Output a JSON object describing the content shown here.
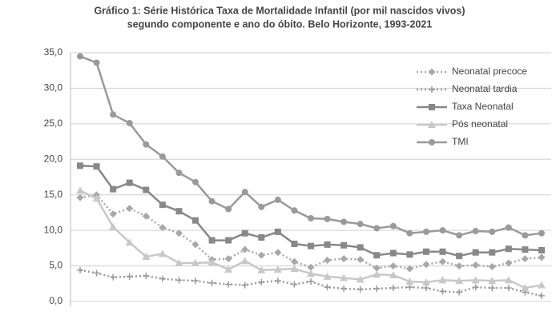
{
  "chart_data": {
    "type": "line",
    "title": [
      "Gráfico 1: Série Histórica Taxa de Mortalidade Infantil (por mil nascidos vivos)",
      "segundo componente e ano do óbito. Belo Horizonte, 1993-2021"
    ],
    "categories": [
      null,
      null,
      null,
      null,
      null,
      null,
      null,
      null,
      null,
      null,
      null,
      null,
      null,
      null,
      null,
      null,
      null,
      null,
      null,
      null,
      null,
      null,
      null,
      null,
      null,
      null,
      null,
      null,
      null
    ],
    "ylim": [
      0,
      35
    ],
    "yticks": [
      {
        "value": 0,
        "label": "0,0"
      },
      {
        "value": 5,
        "label": "5,0"
      },
      {
        "value": 10,
        "label": "10,0"
      },
      {
        "value": 15,
        "label": "15,0"
      },
      {
        "value": 20,
        "label": "20,0"
      },
      {
        "value": 25,
        "label": "25,0"
      },
      {
        "value": 30,
        "label": "30,0"
      },
      {
        "value": 35,
        "label": "35,0"
      }
    ],
    "grid": true,
    "legend": "top-right",
    "series": [
      {
        "name": "Neonatal precoce",
        "color": "#a8a8a8",
        "marker": "diamond",
        "dash": "dotted",
        "values": [
          14.6,
          15.0,
          12.3,
          13.1,
          12.0,
          10.4,
          9.6,
          8.0,
          5.9,
          6.0,
          7.3,
          6.5,
          6.9,
          5.6,
          4.8,
          5.8,
          6.0,
          5.9,
          4.7,
          5.0,
          4.6,
          5.2,
          5.6,
          5.0,
          5.1,
          4.9,
          5.4,
          6.0,
          6.2
        ]
      },
      {
        "name": "Neonatal tardia",
        "color": "#9a9a9a",
        "marker": "plus",
        "dash": "dotted",
        "values": [
          4.4,
          4.0,
          3.4,
          3.5,
          3.6,
          3.2,
          3.0,
          2.9,
          2.6,
          2.4,
          2.3,
          2.7,
          2.9,
          2.4,
          2.8,
          2.0,
          1.8,
          1.7,
          1.8,
          1.9,
          2.0,
          1.9,
          1.4,
          1.3,
          2.0,
          1.9,
          1.9,
          1.3,
          0.8
        ]
      },
      {
        "name": "Taxa Neonatal",
        "color": "#888888",
        "marker": "square",
        "dash": "solid",
        "values": [
          19.1,
          19.0,
          15.8,
          16.7,
          15.7,
          13.6,
          12.7,
          11.4,
          8.6,
          8.6,
          9.6,
          9.0,
          9.8,
          8.1,
          7.8,
          8.0,
          7.9,
          7.6,
          6.5,
          6.8,
          6.6,
          7.0,
          7.0,
          6.4,
          6.9,
          6.9,
          7.4,
          7.3,
          7.2
        ]
      },
      {
        "name": "Pós neonatal",
        "color": "#c8c8c8",
        "marker": "triangle",
        "dash": "solid",
        "values": [
          15.6,
          14.5,
          10.5,
          8.3,
          6.3,
          6.7,
          5.4,
          5.4,
          5.5,
          4.5,
          5.7,
          4.4,
          4.5,
          4.6,
          3.9,
          3.5,
          3.3,
          3.1,
          3.8,
          3.7,
          2.8,
          2.7,
          3.0,
          2.9,
          3.0,
          2.9,
          3.0,
          1.9,
          2.3
        ]
      },
      {
        "name": "TMI",
        "color": "#9a9a9a",
        "marker": "circle",
        "dash": "solid",
        "values": [
          34.5,
          33.6,
          26.3,
          25.1,
          22.1,
          20.4,
          18.1,
          16.8,
          14.1,
          13.0,
          15.4,
          13.3,
          14.3,
          12.8,
          11.7,
          11.6,
          11.2,
          10.9,
          10.3,
          10.6,
          9.6,
          9.8,
          10.0,
          9.3,
          9.9,
          9.8,
          10.4,
          9.3,
          9.6
        ]
      }
    ]
  }
}
